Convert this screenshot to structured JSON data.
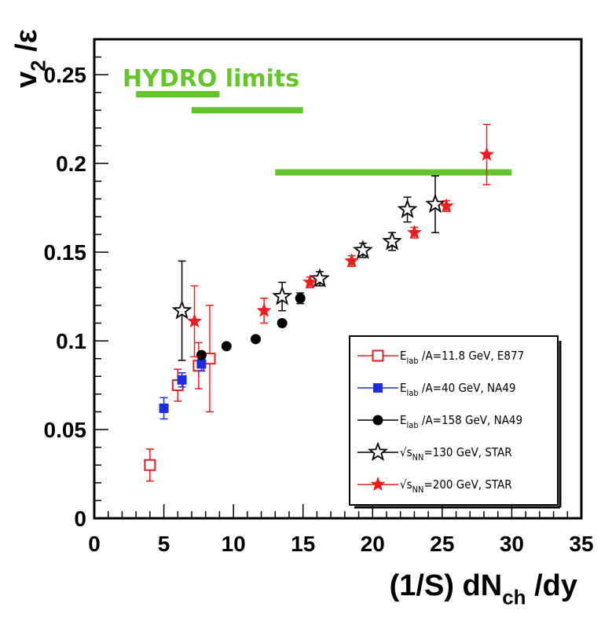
{
  "chart_data": {
    "type": "scatter",
    "xlabel": {
      "main": "(1/S) dN",
      "sub": "ch",
      "rest": " /dy"
    },
    "ylabel": {
      "main": "v",
      "sub": "2",
      "rest": " /ε"
    },
    "xlim": [
      0,
      35
    ],
    "ylim": [
      0,
      0.27
    ],
    "x_ticks": [
      "0",
      "5",
      "10",
      "15",
      "20",
      "25",
      "30",
      "35"
    ],
    "y_ticks": [
      "0",
      "0.05",
      "0.1",
      "0.15",
      "0.2",
      "0.25"
    ],
    "hydro": {
      "label": "HYDRO  limits",
      "color": "#63c52a",
      "segments": [
        {
          "x": [
            3,
            9
          ],
          "y": 0.239
        },
        {
          "x": [
            7,
            15
          ],
          "y": 0.23
        },
        {
          "x": [
            13,
            30
          ],
          "y": 0.195
        }
      ]
    },
    "series": [
      {
        "name": "E_lab /A=11.8 GeV, E877",
        "legend": {
          "main": "E",
          "sub": "lab",
          "rest": " /A=11.8  GeV, E877"
        },
        "marker": "open-square",
        "color": "#e02020",
        "points": [
          {
            "x": 4.0,
            "y": 0.03,
            "err": 0.009
          },
          {
            "x": 6.0,
            "y": 0.075,
            "err": 0.009
          },
          {
            "x": 7.5,
            "y": 0.086,
            "err": 0.013
          },
          {
            "x": 8.3,
            "y": 0.09,
            "err": 0.03
          }
        ]
      },
      {
        "name": "E_lab /A=40 GeV, NA49",
        "legend": {
          "main": "E",
          "sub": "lab",
          "rest": " /A=40  GeV, NA49"
        },
        "marker": "filled-square",
        "color": "#1a2ee0",
        "points": [
          {
            "x": 5.0,
            "y": 0.062,
            "err": 0.006
          },
          {
            "x": 6.3,
            "y": 0.078,
            "err": 0.004
          },
          {
            "x": 7.7,
            "y": 0.087,
            "err": 0.004
          }
        ]
      },
      {
        "name": "E_lab /A=158 GeV, NA49",
        "legend": {
          "main": "E",
          "sub": "lab",
          "rest": " /A=158  GeV, NA49"
        },
        "marker": "filled-circle",
        "color": "#000000",
        "points": [
          {
            "x": 7.7,
            "y": 0.092,
            "err": 0
          },
          {
            "x": 9.5,
            "y": 0.097,
            "err": 0
          },
          {
            "x": 11.6,
            "y": 0.101,
            "err": 0
          },
          {
            "x": 13.5,
            "y": 0.11,
            "err": 0
          },
          {
            "x": 14.8,
            "y": 0.124,
            "err": 0.003
          }
        ]
      },
      {
        "name": "√sNN=130 GeV, STAR",
        "legend": {
          "main": "√s",
          "sub": "NN",
          "rest": "=130  GeV, STAR"
        },
        "marker": "open-star",
        "color": "#000000",
        "points": [
          {
            "x": 6.3,
            "y": 0.117,
            "err": 0.028
          },
          {
            "x": 13.5,
            "y": 0.125,
            "err": 0.008
          },
          {
            "x": 16.2,
            "y": 0.135,
            "err": 0.004
          },
          {
            "x": 19.3,
            "y": 0.151,
            "err": 0.004
          },
          {
            "x": 21.4,
            "y": 0.156,
            "err": 0.005
          },
          {
            "x": 22.5,
            "y": 0.174,
            "err": 0.007
          },
          {
            "x": 24.5,
            "y": 0.177,
            "err": 0.016
          }
        ]
      },
      {
        "name": "√sNN=200 GeV, STAR",
        "legend": {
          "main": "√s",
          "sub": "NN",
          "rest": "=200  GeV, STAR"
        },
        "marker": "filled-star",
        "color": "#ee1c1c",
        "points": [
          {
            "x": 7.2,
            "y": 0.111,
            "err": 0.02
          },
          {
            "x": 12.2,
            "y": 0.117,
            "err": 0.007
          },
          {
            "x": 15.5,
            "y": 0.133,
            "err": 0.003
          },
          {
            "x": 18.5,
            "y": 0.145,
            "err": 0.003
          },
          {
            "x": 23.0,
            "y": 0.161,
            "err": 0.003
          },
          {
            "x": 25.3,
            "y": 0.176,
            "err": 0.003
          },
          {
            "x": 28.2,
            "y": 0.205,
            "err": 0.017
          }
        ]
      }
    ]
  }
}
